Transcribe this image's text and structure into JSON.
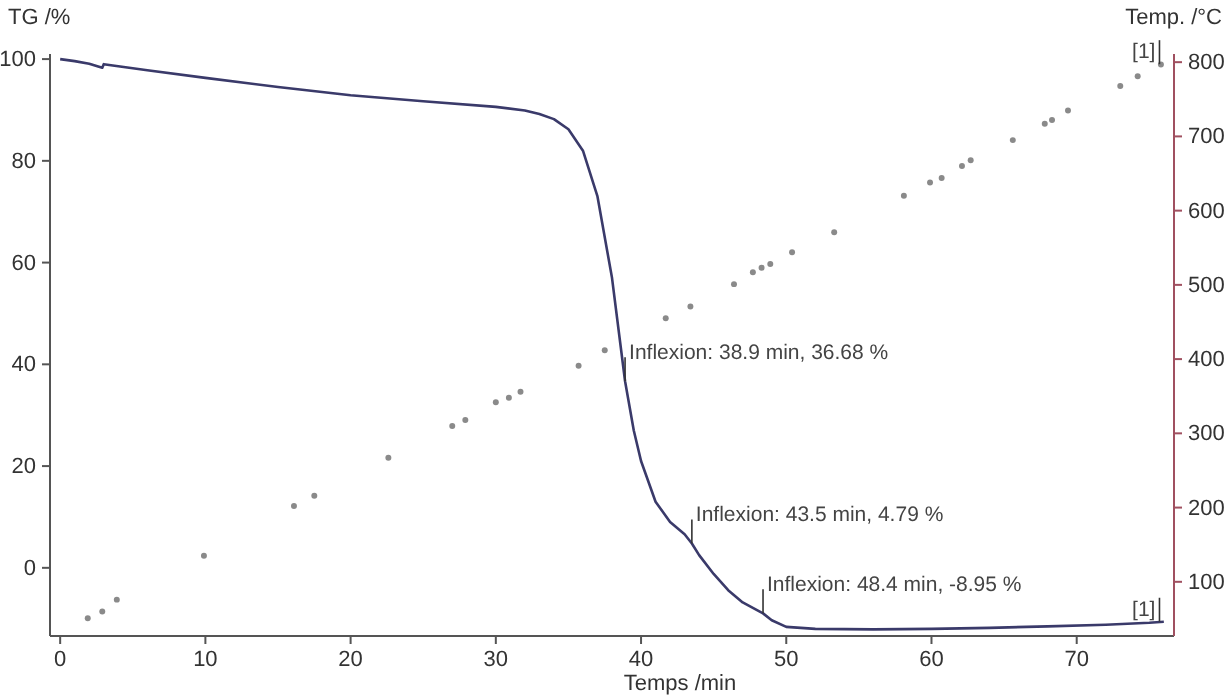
{
  "chart_data": {
    "type": "line",
    "xlabel": "Temps /min",
    "ylabel": "TG /%",
    "y2label": "Temp. /°C",
    "xlim": [
      -0.7,
      76.7
    ],
    "xticks": [
      0,
      10,
      20,
      30,
      40,
      50,
      60,
      70
    ],
    "ylim": [
      -13.4,
      101
    ],
    "yticks": [
      0,
      20,
      40,
      60,
      80,
      100
    ],
    "y2lim": [
      27,
      811
    ],
    "y2ticks": [
      100,
      200,
      300,
      400,
      500,
      600,
      700,
      800
    ],
    "grid": false,
    "series": [
      {
        "color": "#3a3a6a",
        "x": [
          0,
          1,
          2,
          2.9,
          3.0,
          4,
          6,
          10,
          15,
          20,
          25,
          30,
          32,
          33,
          34,
          35,
          36,
          37,
          38,
          38.9,
          39.5,
          40,
          41,
          42,
          43,
          43.5,
          44,
          45,
          46,
          47,
          48.4,
          49,
          50,
          52,
          56,
          60,
          64,
          68,
          72,
          75,
          76
        ],
        "values": [
          100,
          99.6,
          99.1,
          98.3,
          99,
          98.6,
          97.8,
          96.3,
          94.5,
          92.9,
          91.7,
          90.6,
          89.9,
          89.2,
          88.2,
          86.2,
          82,
          73,
          57,
          36.68,
          27,
          21,
          13,
          9,
          6.6,
          4.79,
          2.5,
          -1.2,
          -4.4,
          -6.8,
          -8.95,
          -10.3,
          -11.6,
          -12,
          -12.1,
          -12,
          -11.8,
          -11.5,
          -11.2,
          -10.8,
          -10.6
        ]
      },
      {
        "type": "scatter",
        "axis": "y2",
        "color": "#8a8a8a",
        "marker": "circle",
        "x": [
          1.9,
          2.9,
          3.9,
          9.9,
          16.1,
          17.5,
          22.6,
          27,
          27.9,
          30,
          30.9,
          31.7,
          35.7,
          37.5,
          41.7,
          43.4,
          46.4,
          47.7,
          48.3,
          48.9,
          50.4,
          53.3,
          58.1,
          59.9,
          60.7,
          62.1,
          62.7,
          65.6,
          67.8,
          68.3,
          69.4,
          73,
          74.2,
          75.8
        ],
        "values": [
          51,
          60,
          76,
          135,
          202,
          216,
          267,
          310,
          318,
          342,
          348,
          356,
          391,
          412,
          455,
          471,
          501,
          517,
          523,
          528,
          544,
          571,
          620,
          638,
          644,
          660,
          668,
          695,
          717,
          722,
          735,
          768,
          781,
          797
        ]
      }
    ],
    "annotations": [
      {
        "text": "Inflexion: 38.9 min, 36.68 %",
        "x": 38.9,
        "y": 36.68
      },
      {
        "text": "Inflexion: 43.5 min, 4.79 %",
        "x": 43.5,
        "y": 4.79
      },
      {
        "text": "Inflexion: 48.4 min, -8.95 %",
        "x": 48.4,
        "y": -8.95
      },
      {
        "text": "[1]",
        "x": 75.7,
        "y": 99
      },
      {
        "text": "[1]",
        "x": 75.7,
        "y": -10.6
      }
    ]
  }
}
